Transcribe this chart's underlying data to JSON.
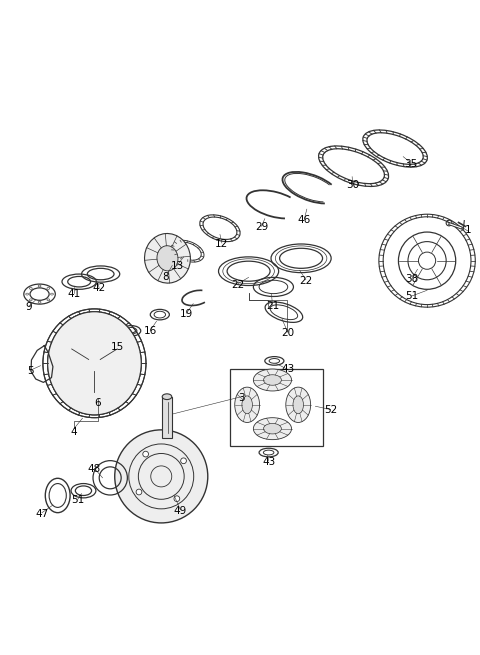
{
  "background_color": "#ffffff",
  "line_color": "#333333",
  "label_color": "#000000",
  "fig_width": 4.8,
  "fig_height": 6.55,
  "dpi": 100
}
